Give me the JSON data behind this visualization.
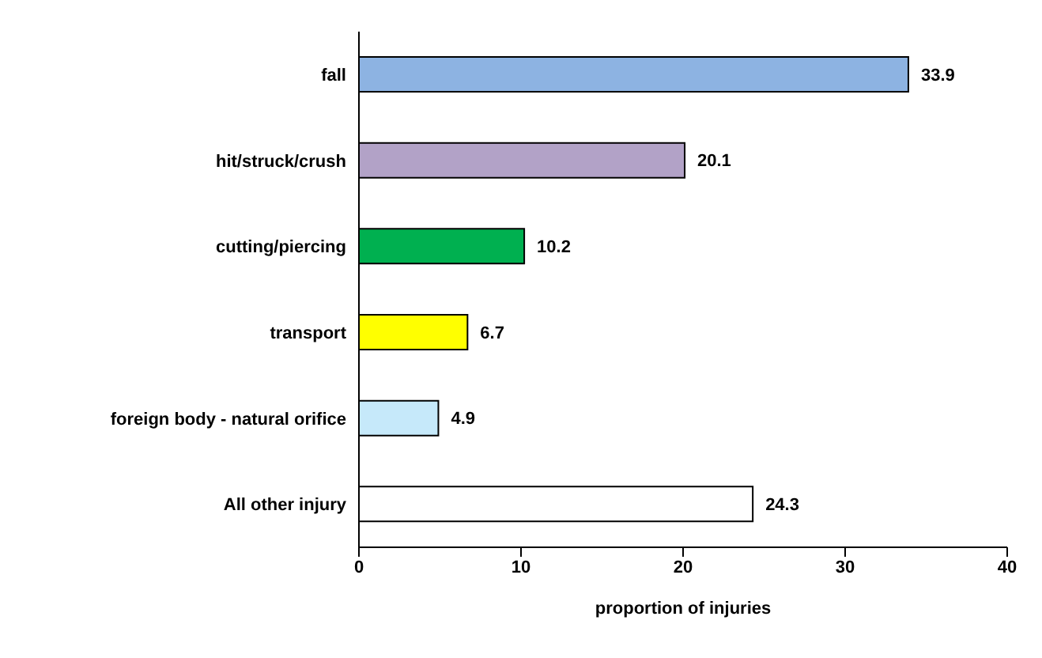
{
  "chart_data": {
    "type": "bar",
    "orientation": "horizontal",
    "xlabel": "proportion of injuries",
    "categories": [
      "fall",
      "hit/struck/crush",
      "cutting/piercing",
      "transport",
      "foreign body - natural orifice",
      "All other injury"
    ],
    "values": [
      33.9,
      20.1,
      10.2,
      6.7,
      4.9,
      24.3
    ],
    "colors": [
      "#8db3e2",
      "#b2a2c7",
      "#00b050",
      "#ffff00",
      "#c6e9fa",
      "#ffffff"
    ],
    "xlim": [
      0,
      40
    ],
    "xticks": [
      0,
      10,
      20,
      30,
      40
    ],
    "data_labels": true
  }
}
